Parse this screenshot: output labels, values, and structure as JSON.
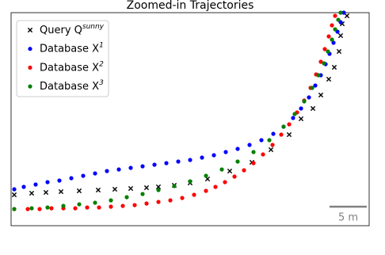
{
  "chart_data": {
    "type": "scatter",
    "title": "Zoomed-in Trajectories",
    "xlim": [
      0,
      452
    ],
    "ylim": [
      0,
      269
    ],
    "series": [
      {
        "name": "Query Q",
        "name_sup": "sunny",
        "marker": "x",
        "color": "#000000",
        "x": [
          4,
          26,
          44,
          63,
          86,
          110,
          131,
          151,
          171,
          186,
          206,
          226,
          248,
          276,
          304,
          328,
          351,
          366,
          381,
          391,
          401,
          408,
          414,
          416,
          418,
          424
        ],
        "values": [
          39,
          41,
          42,
          43,
          44,
          45,
          46,
          47,
          48,
          49,
          51,
          54,
          59,
          69,
          80,
          96,
          115,
          135,
          148,
          165,
          185,
          200,
          220,
          240,
          255,
          265
        ]
      },
      {
        "name": "Database X",
        "name_sup": "1",
        "marker": "o",
        "color": "#0000ff",
        "x": [
          4,
          16,
          31,
          46,
          61,
          76,
          91,
          106,
          121,
          136,
          151,
          166,
          181,
          196,
          211,
          226,
          241,
          256,
          271,
          286,
          301,
          316,
          331,
          344,
          356,
          366,
          376,
          384,
          391,
          397,
          402,
          407,
          412,
          416,
          420
        ],
        "values": [
          46,
          49,
          52,
          55,
          57,
          60,
          63,
          66,
          69,
          71,
          73,
          75,
          77,
          79,
          81,
          83,
          86,
          89,
          93,
          97,
          102,
          108,
          116,
          125,
          136,
          148,
          162,
          177,
          190,
          204,
          217,
          231,
          245,
          257,
          269
        ]
      },
      {
        "name": "Database X",
        "name_sup": "2",
        "marker": "o",
        "color": "#ff0000",
        "x": [
          4,
          21,
          36,
          51,
          66,
          81,
          96,
          111,
          126,
          141,
          156,
          171,
          186,
          201,
          216,
          231,
          246,
          258,
          270,
          282,
          294,
          306,
          318,
          330,
          341,
          351,
          361,
          370,
          378,
          385,
          391,
          396,
          401,
          405,
          409
        ],
        "values": [
          21,
          21,
          21,
          22,
          22,
          22,
          23,
          23,
          24,
          25,
          26,
          28,
          30,
          32,
          35,
          39,
          44,
          49,
          55,
          62,
          70,
          79,
          90,
          102,
          115,
          128,
          143,
          158,
          174,
          191,
          207,
          223,
          239,
          253,
          265
        ]
      },
      {
        "name": "Database X",
        "name_sup": "3",
        "marker": "o",
        "color": "#008000",
        "x": [
          4,
          26,
          46,
          66,
          86,
          106,
          126,
          146,
          166,
          186,
          206,
          226,
          246,
          266,
          286,
          306,
          326,
          344,
          358,
          370,
          380,
          388,
          395,
          400,
          405,
          409,
          413,
          416
        ],
        "values": [
          21,
          22,
          23,
          25,
          27,
          29,
          32,
          36,
          40,
          45,
          50,
          56,
          63,
          71,
          81,
          93,
          108,
          125,
          141,
          157,
          174,
          190,
          205,
          220,
          235,
          248,
          260,
          269
        ]
      }
    ],
    "scale_bar": {
      "label": "5 m",
      "length": 47,
      "color": "#808080"
    }
  }
}
